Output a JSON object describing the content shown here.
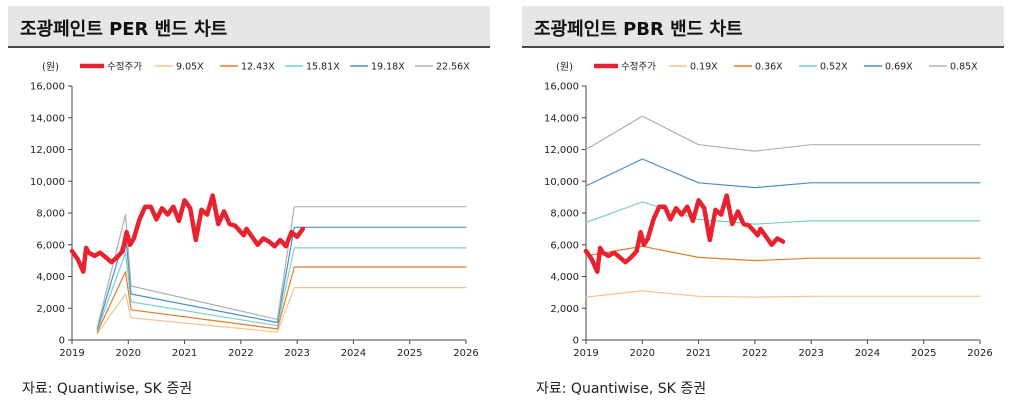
{
  "chart_data": [
    {
      "type": "line",
      "title": "조광페인트 PER 밴드 차트",
      "unit_label": "(원)",
      "source": "자료: Quantiwise, SK 증권",
      "x_ticks": [
        "2019",
        "2020",
        "2021",
        "2022",
        "2023",
        "2024",
        "2025",
        "2026"
      ],
      "xlim": [
        2019,
        2026
      ],
      "y_ticks": [
        "0",
        "2,000",
        "4,000",
        "6,000",
        "8,000",
        "10,000",
        "12,000",
        "14,000",
        "16,000"
      ],
      "ylim": [
        0,
        16000
      ],
      "grid": false,
      "legend": "top",
      "series": [
        {
          "name": "수정주가",
          "color": "#e8232f",
          "x": [
            2019.0,
            2019.1,
            2019.2,
            2019.25,
            2019.3,
            2019.4,
            2019.5,
            2019.6,
            2019.7,
            2019.8,
            2019.9,
            2019.97,
            2020.03,
            2020.1,
            2020.2,
            2020.3,
            2020.4,
            2020.5,
            2020.6,
            2020.7,
            2020.8,
            2020.9,
            2021.0,
            2021.1,
            2021.2,
            2021.3,
            2021.4,
            2021.5,
            2021.6,
            2021.7,
            2021.8,
            2021.9,
            2022.0,
            2022.05,
            2022.1,
            2022.2,
            2022.3,
            2022.4,
            2022.5,
            2022.6,
            2022.7,
            2022.8,
            2022.9,
            2023.0,
            2023.1,
            2023.2,
            2023.3,
            2023.4,
            2023.5
          ],
          "y": [
            5600,
            5100,
            4300,
            5800,
            5500,
            5300,
            5500,
            5200,
            4900,
            5200,
            5600,
            6800,
            6000,
            6400,
            7600,
            8400,
            8400,
            7600,
            8300,
            7900,
            8400,
            7500,
            8800,
            8300,
            6300,
            8200,
            7900,
            9100,
            7300,
            8100,
            7300,
            7200,
            6800,
            6600,
            7000,
            6500,
            6000,
            6400,
            6200,
            5900,
            6300,
            5900,
            6800,
            6500,
            7000,
            null,
            null,
            null,
            null
          ]
        },
        {
          "name": "9.05X",
          "color": "#f5c28e",
          "x": [
            2019.45,
            2019.95,
            2020.05,
            2022.65,
            2022.95,
            2023.0,
            2026.0
          ],
          "y": [
            400,
            2900,
            1400,
            500,
            3300,
            3300,
            3300
          ]
        },
        {
          "name": "12.43X",
          "color": "#e07b2a",
          "x": [
            2019.45,
            2019.95,
            2020.05,
            2022.65,
            2022.95,
            2023.0,
            2026.0
          ],
          "y": [
            500,
            4300,
            1900,
            700,
            4600,
            4600,
            4600
          ]
        },
        {
          "name": "15.81X",
          "color": "#7fd0c4",
          "x": [
            2019.45,
            2019.95,
            2020.05,
            2022.65,
            2022.95,
            2023.0,
            2026.0
          ],
          "y": [
            600,
            5500,
            2400,
            900,
            5800,
            5800,
            5800
          ]
        },
        {
          "name": "19.18X",
          "color": "#4a8fc7",
          "x": [
            2019.45,
            2019.95,
            2020.05,
            2022.65,
            2022.95,
            2023.0,
            2026.0
          ],
          "y": [
            700,
            6700,
            2900,
            1100,
            7100,
            7100,
            7100
          ]
        },
        {
          "name": "22.56X",
          "color": "#b0b0b0",
          "x": [
            2019.45,
            2019.95,
            2020.05,
            2022.65,
            2022.95,
            2023.0,
            2026.0
          ],
          "y": [
            800,
            7900,
            3400,
            1300,
            8400,
            8400,
            8400
          ]
        }
      ]
    },
    {
      "type": "line",
      "title": "조광페인트 PBR 밴드 차트",
      "unit_label": "(원)",
      "source": "자료: Quantiwise, SK 증권",
      "x_ticks": [
        "2019",
        "2020",
        "2021",
        "2022",
        "2023",
        "2024",
        "2025",
        "2026"
      ],
      "xlim": [
        2019,
        2026
      ],
      "y_ticks": [
        "0",
        "2,000",
        "4,000",
        "6,000",
        "8,000",
        "10,000",
        "12,000",
        "14,000",
        "16,000"
      ],
      "ylim": [
        0,
        16000
      ],
      "grid": false,
      "legend": "top",
      "series": [
        {
          "name": "수정주가",
          "color": "#e8232f",
          "x": [
            2019.0,
            2019.1,
            2019.2,
            2019.25,
            2019.3,
            2019.4,
            2019.5,
            2019.6,
            2019.7,
            2019.8,
            2019.9,
            2019.97,
            2020.03,
            2020.1,
            2020.2,
            2020.3,
            2020.4,
            2020.5,
            2020.6,
            2020.7,
            2020.8,
            2020.9,
            2021.0,
            2021.1,
            2021.2,
            2021.3,
            2021.4,
            2021.5,
            2021.6,
            2021.7,
            2021.8,
            2021.9,
            2022.0,
            2022.05,
            2022.1,
            2022.2,
            2022.3,
            2022.4,
            2022.5
          ],
          "y": [
            5600,
            5100,
            4300,
            5800,
            5500,
            5300,
            5500,
            5200,
            4900,
            5200,
            5600,
            6800,
            6000,
            6400,
            7600,
            8400,
            8400,
            7600,
            8300,
            7900,
            8400,
            7500,
            8800,
            8300,
            6300,
            8200,
            7900,
            9100,
            7300,
            8100,
            7300,
            7200,
            6800,
            6600,
            7000,
            6500,
            6000,
            6400,
            6200
          ]
        },
        {
          "name": "0.19X",
          "color": "#f5c28e",
          "x": [
            2019.0,
            2020.0,
            2021.0,
            2022.0,
            2023.0,
            2026.0
          ],
          "y": [
            2700,
            3100,
            2750,
            2700,
            2750,
            2750
          ]
        },
        {
          "name": "0.36X",
          "color": "#e07b2a",
          "x": [
            2019.0,
            2020.0,
            2021.0,
            2022.0,
            2023.0,
            2026.0
          ],
          "y": [
            5300,
            5900,
            5200,
            5000,
            5150,
            5150
          ]
        },
        {
          "name": "0.52X",
          "color": "#7fd0c4",
          "x": [
            2019.0,
            2020.0,
            2021.0,
            2022.0,
            2023.0,
            2026.0
          ],
          "y": [
            7400,
            8700,
            7600,
            7300,
            7500,
            7500
          ]
        },
        {
          "name": "0.69X",
          "color": "#4a8fc7",
          "x": [
            2019.0,
            2020.0,
            2021.0,
            2022.0,
            2023.0,
            2026.0
          ],
          "y": [
            9700,
            11400,
            9900,
            9600,
            9900,
            9900
          ]
        },
        {
          "name": "0.85X",
          "color": "#b0b0b0",
          "x": [
            2019.0,
            2020.0,
            2021.0,
            2022.0,
            2023.0,
            2026.0
          ],
          "y": [
            12000,
            14100,
            12300,
            11900,
            12300,
            12300
          ]
        }
      ]
    }
  ]
}
